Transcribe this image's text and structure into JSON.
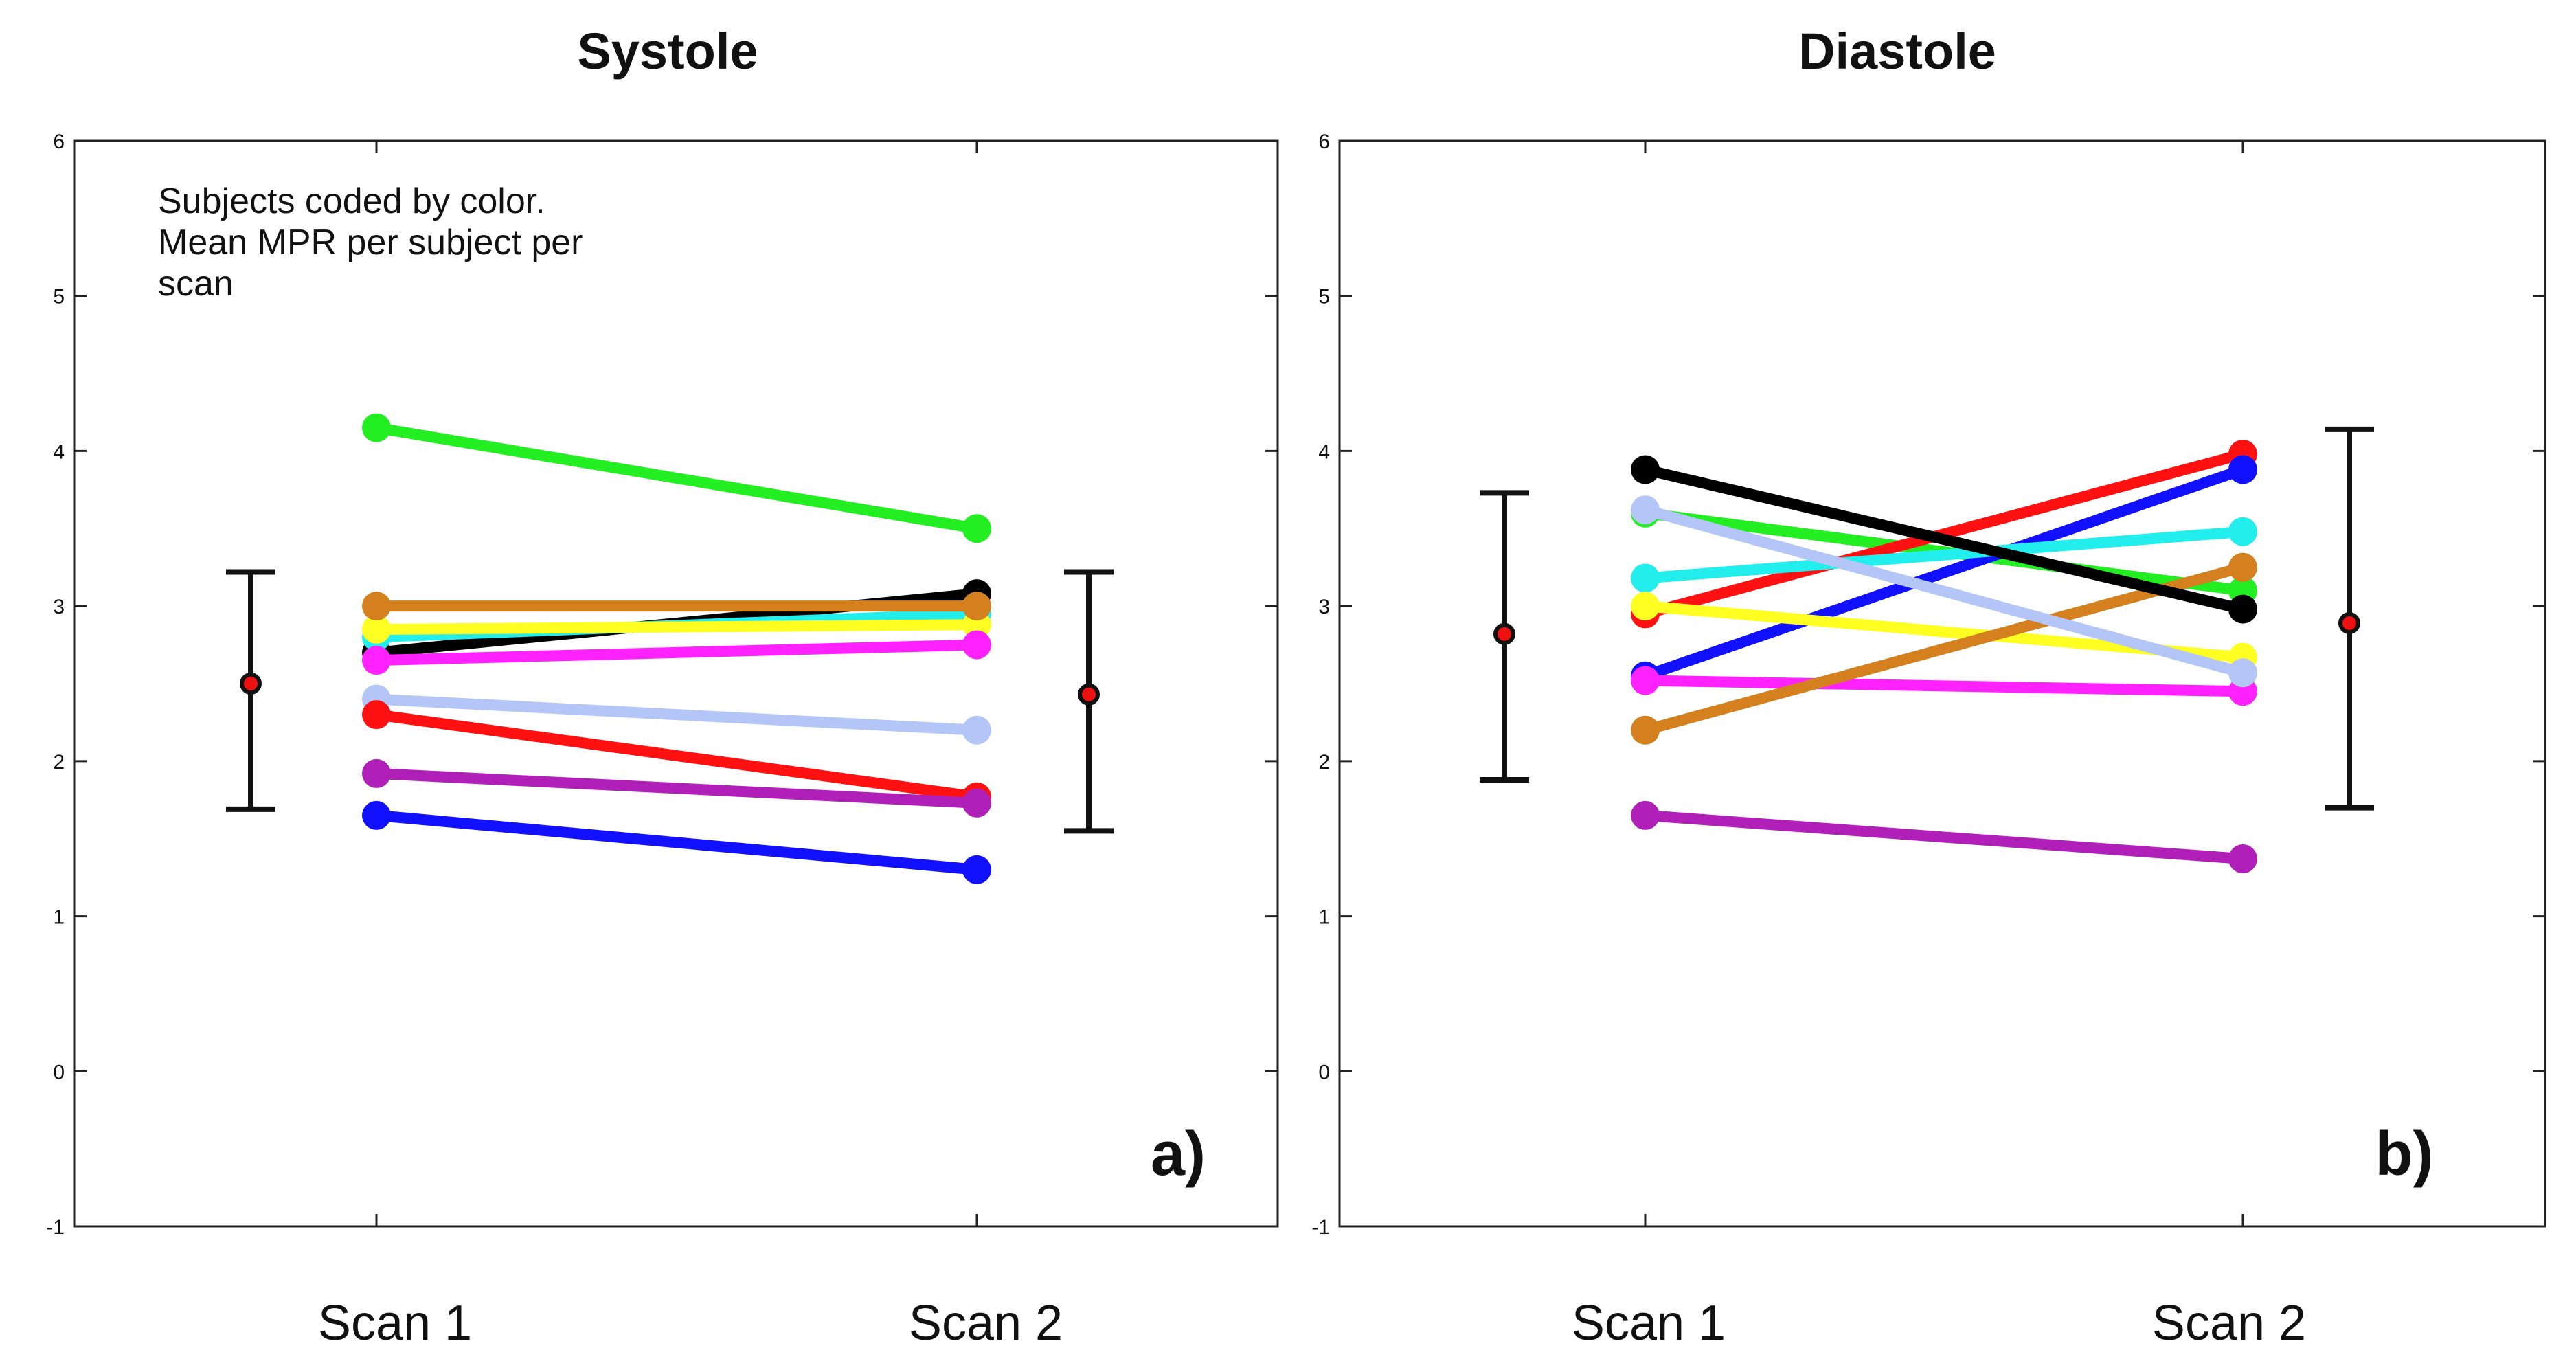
{
  "chart_data": [
    {
      "type": "line",
      "title": "Systole",
      "panel_label": "a)",
      "annotation": [
        "Subjects coded by color.",
        "Mean MPR per subject per",
        "scan"
      ],
      "categories": [
        "Scan 1",
        "Scan 2"
      ],
      "ylim": [
        -1,
        6
      ],
      "yticks": [
        "-1",
        "0",
        "1",
        "2",
        "3",
        "4",
        "5",
        "6"
      ],
      "series": [
        {
          "name": "green",
          "color": "#22ee22",
          "values": [
            4.15,
            3.5
          ]
        },
        {
          "name": "black",
          "color": "#000000",
          "values": [
            2.7,
            3.08
          ]
        },
        {
          "name": "cyan",
          "color": "#22eeee",
          "values": [
            2.8,
            2.95
          ]
        },
        {
          "name": "yellow",
          "color": "#ffff22",
          "values": [
            2.85,
            2.88
          ]
        },
        {
          "name": "magenta",
          "color": "#ff22ff",
          "values": [
            2.65,
            2.75
          ]
        },
        {
          "name": "light-blue",
          "color": "#b3c6f7",
          "values": [
            2.4,
            2.2
          ]
        },
        {
          "name": "red",
          "color": "#ff1111",
          "values": [
            2.3,
            1.77
          ]
        },
        {
          "name": "purple",
          "color": "#b020b8",
          "values": [
            1.92,
            1.73
          ]
        },
        {
          "name": "blue",
          "color": "#1111ff",
          "values": [
            1.65,
            1.3
          ]
        },
        {
          "name": "orange",
          "color": "#d4801e",
          "values": [
            3.0,
            3.0
          ]
        }
      ],
      "error_bars": [
        {
          "position": "left",
          "mean": 2.5,
          "low": 1.69,
          "high": 3.22
        },
        {
          "position": "right",
          "mean": 2.43,
          "low": 1.55,
          "high": 3.22
        }
      ]
    },
    {
      "type": "line",
      "title": "Diastole",
      "panel_label": "b)",
      "categories": [
        "Scan 1",
        "Scan 2"
      ],
      "ylim": [
        -1,
        6
      ],
      "yticks": [
        "-1",
        "0",
        "1",
        "2",
        "3",
        "4",
        "5",
        "6"
      ],
      "series": [
        {
          "name": "green",
          "color": "#22ee22",
          "values": [
            3.6,
            3.1
          ]
        },
        {
          "name": "red",
          "color": "#ff1111",
          "values": [
            2.95,
            3.98
          ]
        },
        {
          "name": "blue",
          "color": "#1111ff",
          "values": [
            2.55,
            3.88
          ]
        },
        {
          "name": "cyan",
          "color": "#22eeee",
          "values": [
            3.18,
            3.48
          ]
        },
        {
          "name": "yellow",
          "color": "#ffff22",
          "values": [
            3.0,
            2.67
          ]
        },
        {
          "name": "magenta",
          "color": "#ff22ff",
          "values": [
            2.52,
            2.45
          ]
        },
        {
          "name": "purple",
          "color": "#b020b8",
          "values": [
            1.65,
            1.37
          ]
        },
        {
          "name": "orange",
          "color": "#d4801e",
          "values": [
            2.2,
            3.25
          ]
        },
        {
          "name": "light-blue",
          "color": "#b3c6f7",
          "values": [
            3.62,
            2.57
          ]
        },
        {
          "name": "black",
          "color": "#000000",
          "values": [
            3.88,
            2.98
          ]
        }
      ],
      "error_bars": [
        {
          "position": "left",
          "mean": 2.82,
          "low": 1.88,
          "high": 3.73
        },
        {
          "position": "right",
          "mean": 2.89,
          "low": 1.7,
          "high": 4.14
        }
      ]
    }
  ]
}
